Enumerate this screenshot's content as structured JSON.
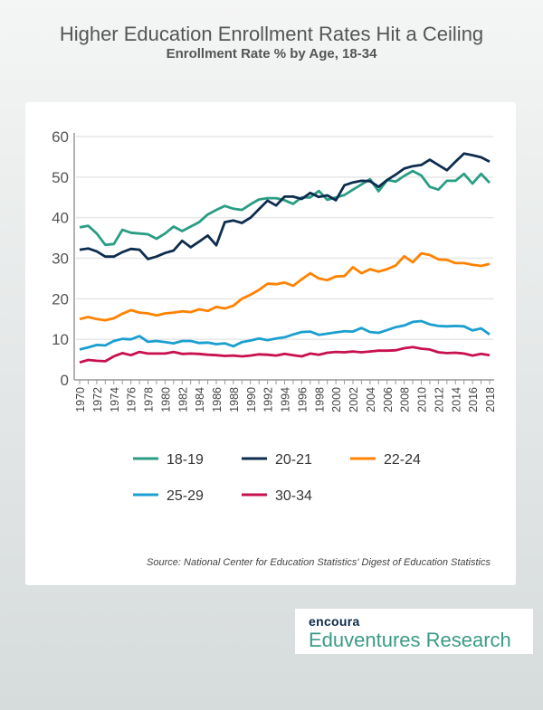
{
  "chart_data": {
    "type": "line",
    "title": "Higher Education Enrollment Rates Hit a Ceiling",
    "subtitle": "Enrollment Rate % by Age, 18-34",
    "xlabel": "",
    "ylabel": "",
    "ylim": [
      0,
      60
    ],
    "yticks": [
      0,
      10,
      20,
      30,
      40,
      50,
      60
    ],
    "x": [
      1970,
      1971,
      1972,
      1973,
      1974,
      1975,
      1976,
      1977,
      1978,
      1979,
      1980,
      1981,
      1982,
      1983,
      1984,
      1985,
      1986,
      1987,
      1988,
      1989,
      1990,
      1991,
      1992,
      1993,
      1994,
      1995,
      1996,
      1997,
      1998,
      1999,
      2000,
      2001,
      2002,
      2003,
      2004,
      2005,
      2006,
      2007,
      2008,
      2009,
      2010,
      2011,
      2012,
      2013,
      2014,
      2015,
      2016,
      2017,
      2018
    ],
    "xtick_labels": [
      "1970",
      "1972",
      "1974",
      "1976",
      "1978",
      "1980",
      "1982",
      "1984",
      "1986",
      "1988",
      "1990",
      "1992",
      "1994",
      "1996",
      "1998",
      "2000",
      "2002",
      "2004",
      "2006",
      "2008",
      "2010",
      "2012",
      "2014",
      "2016",
      "2018"
    ],
    "grid": true,
    "legend_position": "bottom",
    "series": [
      {
        "name": "18-19",
        "color": "#2a9d84",
        "values": [
          37.6,
          38,
          36.1,
          33.3,
          33.5,
          37,
          36.3,
          36.1,
          35.9,
          34.8,
          36.1,
          37.8,
          36.7,
          37.8,
          38.9,
          40.8,
          41.9,
          42.9,
          42.2,
          41.9,
          43.3,
          44.5,
          44.8,
          44.8,
          44.3,
          43.4,
          45,
          45,
          46.6,
          44.4,
          45,
          45.6,
          46.9,
          48.2,
          49.5,
          46.5,
          49.3,
          48.9,
          50.3,
          51.5,
          50.4,
          47.6,
          46.9,
          49.1,
          49.1,
          50.8,
          48.4,
          50.8,
          48.6
        ]
      },
      {
        "name": "20-21",
        "color": "#0d2d4f",
        "values": [
          32.1,
          32.4,
          31.7,
          30.4,
          30.4,
          31.5,
          32.3,
          32.1,
          29.8,
          30.4,
          31.3,
          31.9,
          34.3,
          32.7,
          34.1,
          35.6,
          33.2,
          38.9,
          39.3,
          38.7,
          40,
          42.1,
          44.2,
          43,
          45.2,
          45.2,
          44.6,
          46.1,
          45.1,
          45.5,
          44.3,
          48,
          48.7,
          49.1,
          49,
          47.6,
          49.3,
          50.6,
          52.1,
          52.7,
          53,
          54.3,
          53,
          51.7,
          53.8,
          55.8,
          55.4,
          54.9,
          53.8
        ]
      },
      {
        "name": "22-24",
        "color": "#ff8200",
        "values": [
          15,
          15.5,
          15,
          14.7,
          15.2,
          16.3,
          17.2,
          16.6,
          16.4,
          15.9,
          16.4,
          16.6,
          16.9,
          16.7,
          17.4,
          17,
          18,
          17.6,
          18.3,
          20,
          21,
          22.2,
          23.7,
          23.6,
          24,
          23.2,
          24.8,
          26.3,
          25,
          24.6,
          25.5,
          25.6,
          27.8,
          26.3,
          27.3,
          26.7,
          27.3,
          28.2,
          30.5,
          29,
          31.2,
          30.8,
          29.7,
          29.6,
          28.8,
          28.8,
          28.4,
          28.1,
          28.6
        ]
      },
      {
        "name": "25-29",
        "color": "#1a9fcf",
        "values": [
          7.5,
          8,
          8.6,
          8.5,
          9.6,
          10.1,
          10,
          10.8,
          9.4,
          9.6,
          9.3,
          9,
          9.6,
          9.6,
          9.1,
          9.2,
          8.8,
          9,
          8.3,
          9.3,
          9.7,
          10.2,
          9.8,
          10.2,
          10.5,
          11.2,
          11.8,
          11.9,
          11.1,
          11.4,
          11.7,
          12,
          11.9,
          12.8,
          11.8,
          11.6,
          12.3,
          13,
          13.4,
          14.3,
          14.5,
          13.7,
          13.3,
          13.2,
          13.3,
          13.2,
          12.2,
          12.7,
          11.2
        ]
      },
      {
        "name": "30-34",
        "color": "#c8104f",
        "values": [
          4.3,
          4.9,
          4.7,
          4.6,
          5.8,
          6.6,
          6.1,
          6.9,
          6.5,
          6.5,
          6.5,
          6.9,
          6.4,
          6.5,
          6.4,
          6.2,
          6.1,
          5.9,
          6,
          5.8,
          6,
          6.3,
          6.2,
          6,
          6.4,
          6.1,
          5.8,
          6.5,
          6.2,
          6.7,
          6.9,
          6.8,
          7,
          6.8,
          7,
          7.2,
          7.2,
          7.3,
          7.8,
          8.1,
          7.7,
          7.5,
          6.8,
          6.6,
          6.7,
          6.5,
          6,
          6.4,
          6.1
        ]
      }
    ],
    "source": "Source: National Center for Education Statistics' Digest of Education Statistics"
  },
  "logo": {
    "brand": "encoura",
    "product": "Eduventures Research"
  }
}
